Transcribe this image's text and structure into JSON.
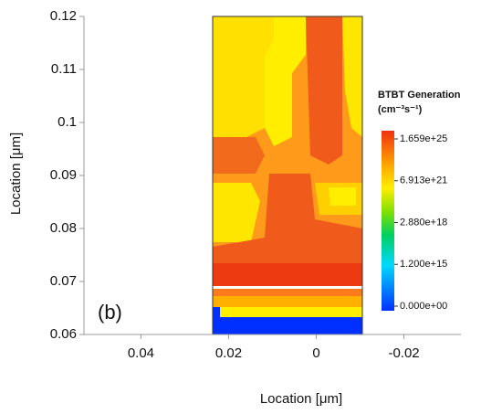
{
  "chart_data": {
    "type": "contour",
    "xlabel": "Location [μm]",
    "ylabel": "Location [μm]",
    "annotation": "(b)",
    "xlim": [
      0.053,
      -0.033
    ],
    "xticks": [
      0.04,
      0.02,
      0,
      -0.02
    ],
    "ylim": [
      0.06,
      0.12
    ],
    "yticks": [
      0.06,
      0.07,
      0.08,
      0.09,
      0.1,
      0.11,
      0.12
    ],
    "colorbar": {
      "title": "BTBT Generation",
      "unit": "(cm⁻³s⁻¹)",
      "ticks": [
        {
          "value": 1.659e+25,
          "label": "1.659e+25"
        },
        {
          "value": 6.913e+21,
          "label": "6.913e+21"
        },
        {
          "value": 2.88e+18,
          "label": "2.880e+18"
        },
        {
          "value": 1200000000000000.0,
          "label": "1.200e+15"
        },
        {
          "value": 0,
          "label": "0.000e+00"
        }
      ]
    }
  }
}
